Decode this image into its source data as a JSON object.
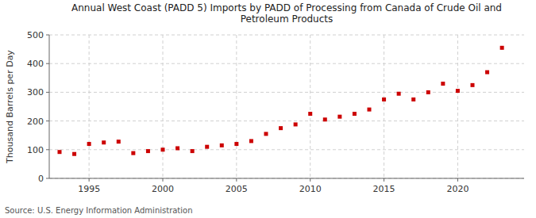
{
  "chart_data": {
    "type": "scatter",
    "title": "Annual West Coast (PADD 5) Imports by PADD of Processing from Canada of Crude Oil and\nPetroleum Products",
    "y_label": "Thousand Barrels per Day",
    "annotations": [
      "Source: U.S. Energy Information Administration"
    ],
    "x": [
      1993,
      1994,
      1995,
      1996,
      1997,
      1998,
      1999,
      2000,
      2001,
      2002,
      2003,
      2004,
      2005,
      2006,
      2007,
      2008,
      2009,
      2010,
      2011,
      2012,
      2013,
      2014,
      2015,
      2016,
      2017,
      2018,
      2019,
      2020,
      2021,
      2022,
      2023
    ],
    "values": [
      92,
      85,
      120,
      125,
      128,
      88,
      95,
      100,
      105,
      95,
      110,
      115,
      120,
      130,
      155,
      175,
      188,
      225,
      205,
      215,
      225,
      240,
      275,
      295,
      275,
      300,
      330,
      305,
      325,
      370,
      455
    ],
    "color": "#cc0000",
    "marker": "square",
    "xlim": [
      1992.3,
      2024.5
    ],
    "ylim": [
      0,
      500
    ],
    "xticks": [
      1995,
      2000,
      2005,
      2010,
      2015,
      2020
    ],
    "yticks": [
      0,
      100,
      200,
      300,
      400,
      500
    ],
    "grid": true
  }
}
